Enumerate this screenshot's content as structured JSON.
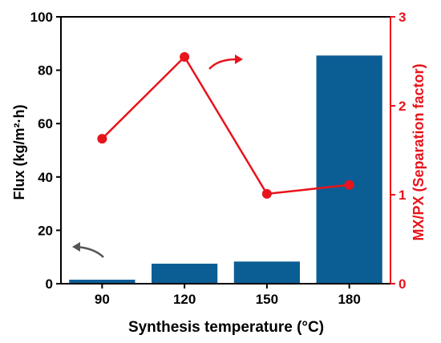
{
  "chart_data": {
    "type": "bar",
    "categories": [
      "90",
      "120",
      "150",
      "180"
    ],
    "xlabel": "Synthesis temperature (°C)",
    "ylabel_left": "Flux (kg/m²·h)",
    "ylabel_right": "MX/PX (Separation factor)",
    "ylim_left": [
      0,
      100
    ],
    "ylim_right": [
      0,
      3
    ],
    "yticks_left": [
      "0",
      "20",
      "40",
      "60",
      "80",
      "100"
    ],
    "yticks_right": [
      "0",
      "1",
      "2",
      "3"
    ],
    "grid": false,
    "series": [
      {
        "axis": "left",
        "type": "bar",
        "color": "#0b5e94",
        "values": [
          1.5,
          7.5,
          8.3,
          85.5
        ]
      },
      {
        "axis": "right",
        "type": "line",
        "color": "#e8141b",
        "values": [
          1.63,
          2.55,
          1.01,
          1.11
        ]
      }
    ],
    "annotations": [
      "left-pointing arrow near flux bars (dark grey)",
      "right-pointing arrow near separation factor line (red)"
    ]
  },
  "colors": {
    "bar": "#0b5e94",
    "line": "#e8141b",
    "arrow_left": "#555555",
    "axis": "#000000",
    "right_axis": "#e8141b"
  }
}
